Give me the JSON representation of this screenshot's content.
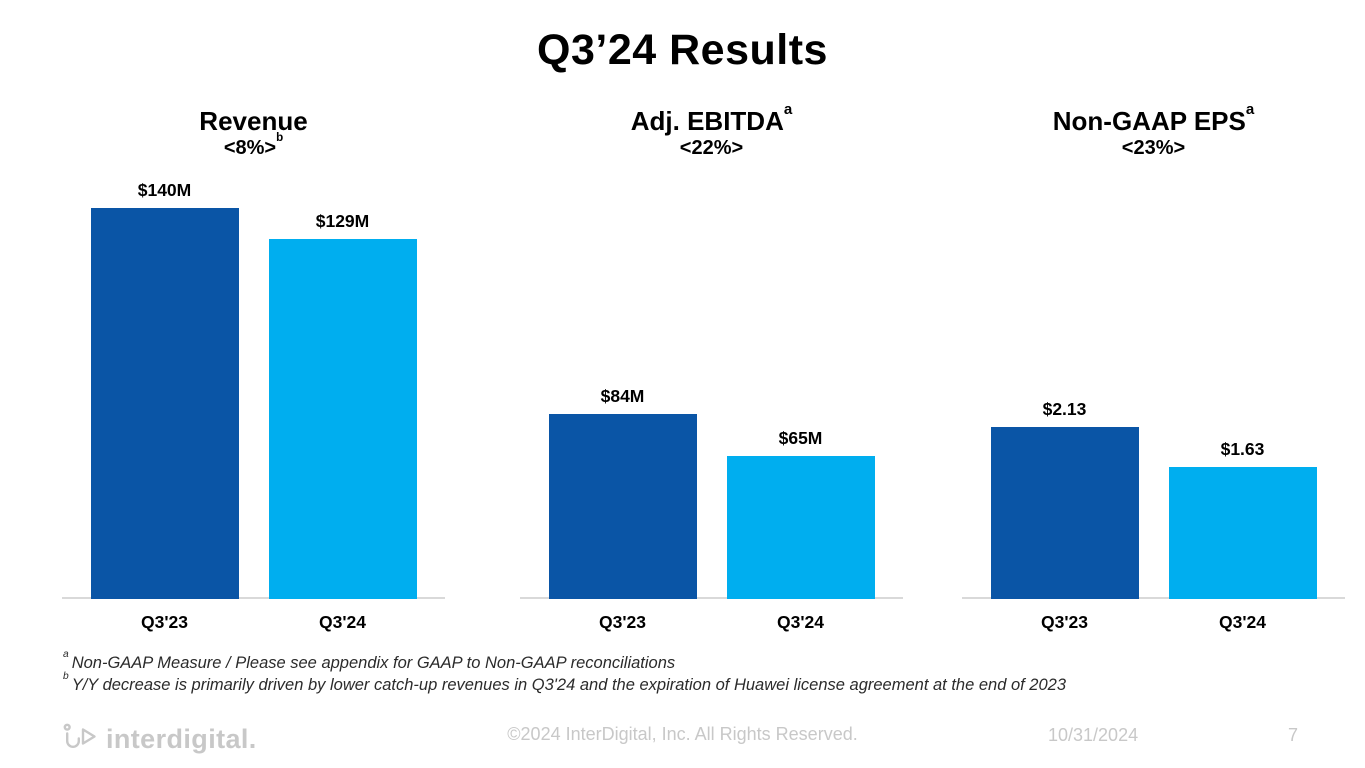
{
  "slide": {
    "title": "Q3’24 Results",
    "footnotes": [
      {
        "sup": "a",
        "text": "Non-GAAP Measure / Please see appendix for GAAP to Non-GAAP reconciliations"
      },
      {
        "sup": "b",
        "text": "Y/Y decrease is primarily driven by lower catch-up revenues in Q3'24 and the expiration of Huawei license agreement at the end of 2023"
      }
    ],
    "footer": {
      "logo_text": "interdigital.",
      "copyright": "©2024 InterDigital, Inc. All Rights Reserved.",
      "date": "10/31/2024",
      "page_number": "7"
    }
  },
  "colors": {
    "bar_q323": "#0a55a6",
    "bar_q324": "#00aeef",
    "axis_line": "#d9d9d9",
    "footer_gray": "#c8c8c8",
    "text_black": "#000000"
  },
  "chart_data": [
    {
      "type": "bar",
      "title": "Revenue",
      "title_sup": "",
      "subtitle": "<8%>",
      "subtitle_sup": "b",
      "categories": [
        "Q3'23",
        "Q3'24"
      ],
      "values": [
        140,
        129
      ],
      "value_labels": [
        "$140M",
        "$129M"
      ],
      "series_colors": [
        "#0a55a6",
        "#00aeef"
      ],
      "legend": "none",
      "grid": "off"
    },
    {
      "type": "bar",
      "title": "Adj. EBITDA",
      "title_sup": "a",
      "subtitle": "<22%>",
      "subtitle_sup": "",
      "categories": [
        "Q3'23",
        "Q3'24"
      ],
      "values": [
        84,
        65
      ],
      "value_labels": [
        "$84M",
        "$65M"
      ],
      "series_colors": [
        "#0a55a6",
        "#00aeef"
      ],
      "legend": "none",
      "grid": "off"
    },
    {
      "type": "bar",
      "title": "Non-GAAP EPS",
      "title_sup": "a",
      "subtitle": "<23%>",
      "subtitle_sup": "",
      "categories": [
        "Q3'23",
        "Q3'24"
      ],
      "values": [
        2.13,
        1.63
      ],
      "value_labels": [
        "$2.13",
        "$1.63"
      ],
      "series_colors": [
        "#0a55a6",
        "#00aeef"
      ],
      "legend": "none",
      "grid": "off"
    }
  ]
}
